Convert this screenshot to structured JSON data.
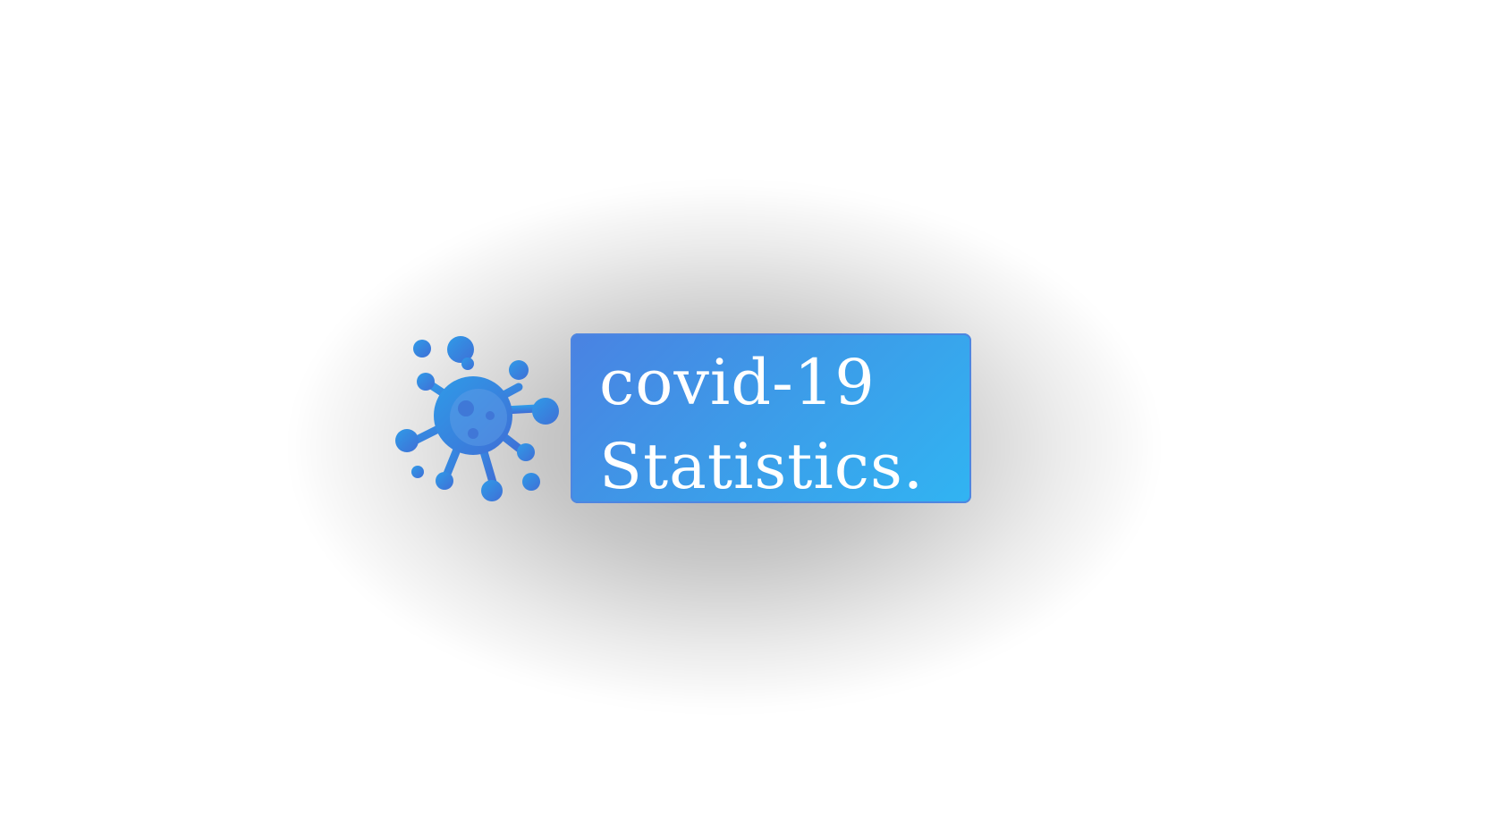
{
  "logo": {
    "line1": "covid-19",
    "line2": "Statistics.",
    "icon": "virus-icon",
    "colors": {
      "gradient_start": "#4a82e2",
      "gradient_end": "#31b4f2",
      "virus_primary": "#3a8fe6",
      "virus_dark": "#3c74d8",
      "text": "#ffffff"
    }
  }
}
